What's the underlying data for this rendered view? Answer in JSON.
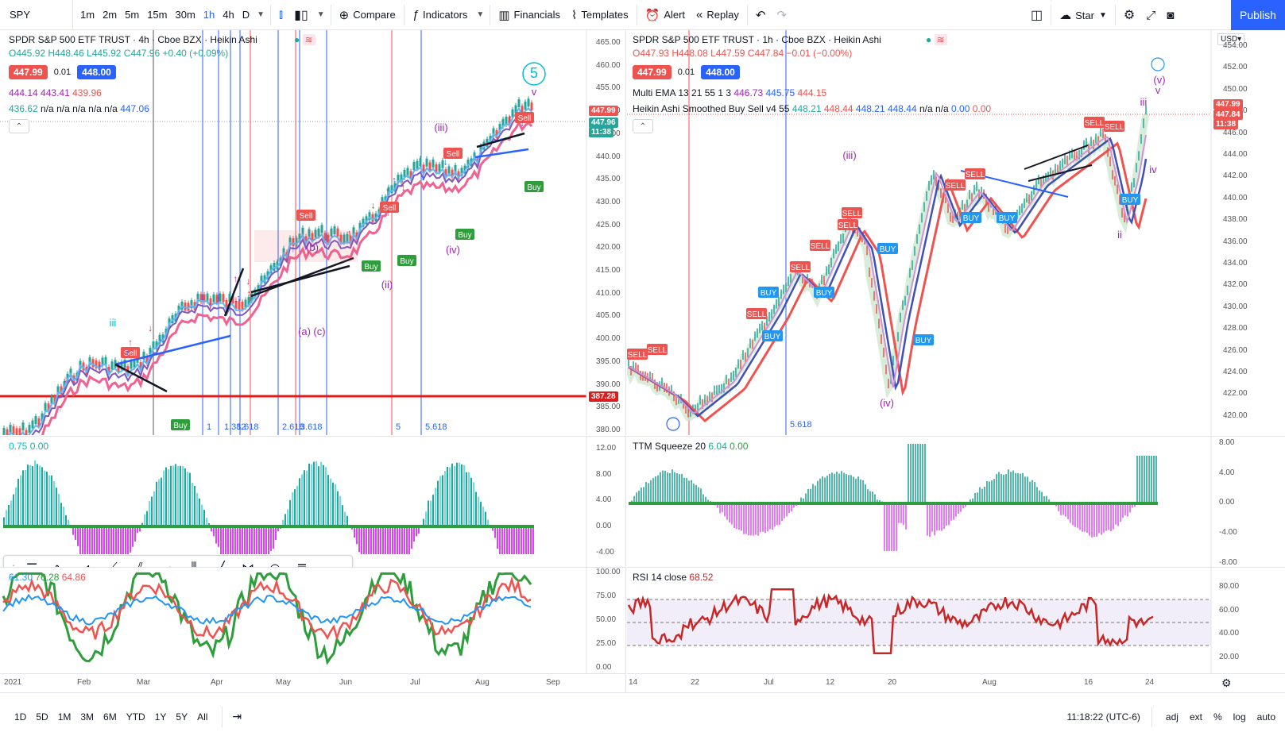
{
  "toolbar": {
    "symbol": "SPY",
    "intervals": [
      "1m",
      "2m",
      "5m",
      "15m",
      "30m",
      "1h",
      "4h",
      "D"
    ],
    "active_interval": "1h",
    "compare": "Compare",
    "indicators": "Indicators",
    "financials": "Financials",
    "templates": "Templates",
    "alert": "Alert",
    "replay": "Replay",
    "star": "Star",
    "publish": "Publish"
  },
  "left": {
    "title": "SPDR S&P 500 ETF TRUST · 4h · Cboe BZX · Heikin Ashi",
    "ohlc": "O445.92 H448.46 L445.92 C447.96 +0.40 (+0.09%)",
    "bid": "447.99",
    "spread": "0.01",
    "ask": "448.00",
    "line3": [
      "444.14",
      "443.41",
      "439.96"
    ],
    "line4": [
      "436.62",
      "n/a",
      "n/a",
      "n/a",
      "n/a",
      "n/a",
      "447.06"
    ],
    "price_ticks": [
      "465.00",
      "460.00",
      "455.00",
      "450.00",
      "445.00",
      "440.00",
      "435.00",
      "430.00",
      "425.00",
      "420.00",
      "415.00",
      "410.00",
      "405.00",
      "400.00",
      "395.00",
      "390.00",
      "385.00",
      "380.00"
    ],
    "tag_last": "447.99",
    "tag_cur": "447.96",
    "tag_time": "11:38",
    "tag_red": "387.28",
    "fib_labels": [
      "1",
      "1.382",
      "1.618",
      "2.618",
      "3.618",
      "5",
      "5.618"
    ],
    "wave_labels": [
      "(iii)",
      "iii",
      "5",
      "(iv)",
      "(ii)",
      "(a)",
      "(c)",
      "(b)",
      "v"
    ],
    "signal_sell": "Sell",
    "signal_buy": "Buy",
    "osc_legend": [
      "0.75",
      "0.00"
    ],
    "osc_ticks": [
      "12.00",
      "8.00",
      "4.00",
      "0.00",
      "-4.00"
    ],
    "rsi_legend": [
      "61.30",
      "76.28",
      "64.86"
    ],
    "rsi_ticks": [
      "100.00",
      "75.00",
      "50.00",
      "25.00",
      "0.00"
    ],
    "time_ticks": [
      "2021",
      "Feb",
      "Mar",
      "Apr",
      "May",
      "Jun",
      "Jul",
      "Aug",
      "Sep"
    ]
  },
  "right": {
    "title": "SPDR S&P 500 ETF TRUST · 1h · Cboe BZX · Heikin Ashi",
    "ohlc": "O447.93 H448.08 L447.59 C447.84 −0.01 (−0.00%)",
    "bid": "447.99",
    "spread": "0.01",
    "ask": "448.00",
    "ema_label": "Multi EMA 13 21 55 1 3",
    "ema_vals": [
      "446.73",
      "445.75",
      "444.15"
    ],
    "ha_label": "Heikin Ashi Smoothed Buy Sell v4 55",
    "ha_vals": [
      "448.21",
      "448.44",
      "448.21",
      "448.44",
      "n/a",
      "n/a",
      "0.00",
      "0.00"
    ],
    "currency": "USD",
    "price_ticks": [
      "454.00",
      "452.00",
      "450.00",
      "448.00",
      "446.00",
      "444.00",
      "442.00",
      "440.00",
      "438.00",
      "436.00",
      "434.00",
      "432.00",
      "430.00",
      "428.00",
      "426.00",
      "424.00",
      "422.00",
      "420.00"
    ],
    "tag_last": "447.99",
    "tag_cur": "447.84",
    "tag_time": "11:38",
    "fib_label": "5.618",
    "wave_labels": [
      "(iii)",
      "(iv)",
      "(v)",
      "iii",
      "iv",
      "ii",
      "v"
    ],
    "signal_sell": "SELL",
    "signal_buy": "BUY",
    "ttm_label": "TTM Squeeze 20",
    "ttm_vals": [
      "6.04",
      "0.00"
    ],
    "ttm_ticks": [
      "8.00",
      "4.00",
      "0.00",
      "-4.00",
      "-8.00"
    ],
    "rsi_label": "RSI 14 close",
    "rsi_val": "68.52",
    "rsi_ticks": [
      "80.00",
      "60.00",
      "40.00",
      "20.00"
    ],
    "time_ticks": [
      "14",
      "22",
      "Jul",
      "12",
      "20",
      "Aug",
      "16",
      "24"
    ]
  },
  "bottom": {
    "ranges": [
      "1D",
      "5D",
      "1M",
      "3M",
      "6M",
      "YTD",
      "1Y",
      "5Y",
      "All"
    ],
    "clock": "11:18:22 (UTC-6)",
    "adj": "adj",
    "ext": "ext",
    "pct": "%",
    "log": "log",
    "auto": "auto"
  },
  "colors": {
    "accent": "#2962ff",
    "up": "#26a69a",
    "down": "#ef5350",
    "cyan": "#5fe3e8",
    "magenta": "#e040fb",
    "rsi": "#c62828"
  }
}
